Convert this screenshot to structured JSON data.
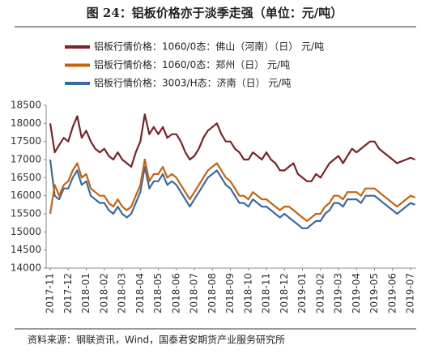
{
  "chart_data": {
    "type": "line",
    "title": "图 24：铝板价格亦于淡季走强（单位：元/吨）",
    "source": "资料来源：钢联资讯，Wind，国泰君安期货产业服务研究所",
    "categories": [
      "2017-11",
      null,
      null,
      null,
      "2017-12",
      null,
      null,
      null,
      "2018-01",
      null,
      null,
      null,
      "2018-02",
      null,
      null,
      null,
      "2018-03",
      null,
      null,
      null,
      "2018-04",
      null,
      null,
      null,
      "2018-05",
      null,
      null,
      null,
      "2018-06",
      null,
      null,
      null,
      "2018-07",
      null,
      null,
      null,
      "2018-08",
      null,
      null,
      null,
      "2018-09",
      null,
      null,
      null,
      "2018-10",
      null,
      null,
      null,
      "2018-11",
      null,
      null,
      null,
      "2018-12",
      null,
      null,
      null,
      "2019-01",
      null,
      null,
      null,
      "2019-02",
      null,
      null,
      null,
      "2019-03",
      null,
      null,
      null,
      "2019-04",
      null,
      null,
      null,
      "2019-05",
      null,
      null,
      null,
      "2019-06",
      null,
      null,
      null,
      "2019-07",
      null
    ],
    "series": [
      {
        "name": "铝板行情价格：1060/0态：佛山（河南）（日）  元/吨",
        "color": "#7b2327",
        "values": [
          18000,
          17200,
          17400,
          17600,
          17500,
          17900,
          18200,
          17600,
          17800,
          17500,
          17300,
          17200,
          17300,
          17100,
          17000,
          17200,
          17000,
          16900,
          16800,
          17200,
          17500,
          18250,
          17700,
          17900,
          17700,
          17900,
          17600,
          17700,
          17700,
          17500,
          17200,
          17000,
          17100,
          17300,
          17600,
          17800,
          17900,
          18000,
          17700,
          17500,
          17500,
          17300,
          17200,
          17000,
          17000,
          17200,
          17100,
          17000,
          17200,
          17000,
          16900,
          16700,
          16700,
          16800,
          16900,
          16600,
          16500,
          16400,
          16400,
          16600,
          16500,
          16700,
          16900,
          17000,
          17100,
          16900,
          17100,
          17300,
          17200,
          17300,
          17400,
          17500,
          17500,
          17300,
          17200,
          17100,
          17000,
          16900,
          16950,
          17000,
          17050,
          17000
        ]
      },
      {
        "name": "铝板行情价格：1060/0态：郑州（日）  元/吨",
        "color": "#c8620e",
        "values": [
          15500,
          16300,
          16000,
          16300,
          16400,
          16700,
          16900,
          16500,
          16600,
          16200,
          16100,
          16000,
          16000,
          15800,
          15700,
          15900,
          15700,
          15600,
          15700,
          16000,
          16300,
          17000,
          16400,
          16600,
          16600,
          16800,
          16500,
          16600,
          16500,
          16300,
          16100,
          15900,
          16100,
          16300,
          16500,
          16700,
          16800,
          16900,
          16700,
          16500,
          16400,
          16200,
          16000,
          16000,
          15900,
          16100,
          16000,
          15900,
          15900,
          15800,
          15700,
          15600,
          15700,
          15700,
          15600,
          15500,
          15400,
          15300,
          15400,
          15500,
          15500,
          15700,
          15800,
          16000,
          16000,
          15900,
          16100,
          16100,
          16100,
          16000,
          16200,
          16200,
          16200,
          16100,
          16000,
          15900,
          15800,
          15700,
          15800,
          15900,
          16000,
          15950
        ]
      },
      {
        "name": "铝板行情价格：3003/H态：济南（日）  元/吨",
        "color": "#3a6aa3",
        "values": [
          17000,
          16000,
          15900,
          16200,
          16200,
          16500,
          16700,
          16300,
          16400,
          16000,
          15900,
          15800,
          15800,
          15600,
          15500,
          15700,
          15500,
          15400,
          15500,
          15800,
          16100,
          16800,
          16200,
          16400,
          16400,
          16600,
          16300,
          16400,
          16300,
          16100,
          15900,
          15700,
          15900,
          16100,
          16300,
          16500,
          16600,
          16700,
          16500,
          16300,
          16200,
          16000,
          15800,
          15800,
          15700,
          15900,
          15800,
          15700,
          15700,
          15600,
          15500,
          15400,
          15500,
          15400,
          15300,
          15200,
          15100,
          15100,
          15200,
          15300,
          15300,
          15500,
          15600,
          15800,
          15800,
          15700,
          15900,
          15900,
          15900,
          15800,
          16000,
          16000,
          16000,
          15900,
          15800,
          15700,
          15600,
          15500,
          15600,
          15700,
          15800,
          15750
        ]
      }
    ],
    "ylim": [
      14000,
      18500
    ],
    "yticks": [
      14000,
      14500,
      15000,
      15500,
      16000,
      16500,
      17000,
      17500,
      18000,
      18500
    ]
  }
}
